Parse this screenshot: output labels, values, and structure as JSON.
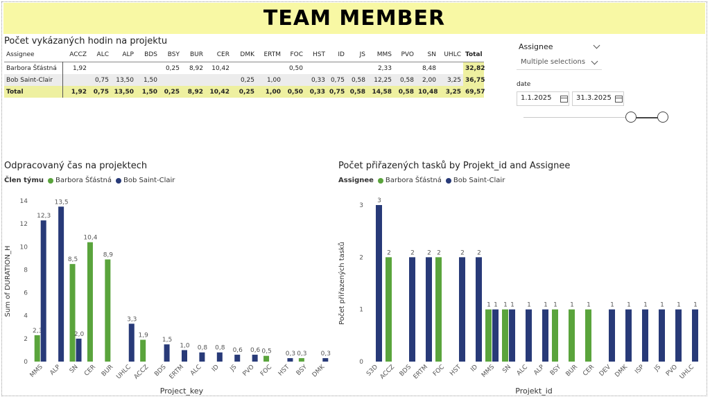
{
  "header": {
    "title": "TEAM MEMBER"
  },
  "matrix": {
    "title": "Počet vykázaných hodin na projektu",
    "columns": [
      "Assignee",
      "ACCZ",
      "ALC",
      "ALP",
      "BDS",
      "BSY",
      "BUR",
      "CER",
      "DMK",
      "ERTM",
      "FOC",
      "HST",
      "ID",
      "JS",
      "MMS",
      "PVO",
      "SN",
      "UHLC",
      "Total"
    ],
    "rows": [
      {
        "cells": [
          "Barbora Šťástná",
          "1,92",
          "",
          "",
          "",
          "0,25",
          "8,92",
          "10,42",
          "",
          "",
          "0,50",
          "",
          "",
          "",
          "2,33",
          "",
          "8,48",
          "",
          "32,82"
        ]
      },
      {
        "cells": [
          "Bob Saint-Clair",
          "",
          "0,75",
          "13,50",
          "1,50",
          "",
          "",
          "",
          "0,25",
          "1,00",
          "",
          "0,33",
          "0,75",
          "0,58",
          "12,25",
          "0,58",
          "2,00",
          "3,25",
          "36,75"
        ]
      }
    ],
    "total": {
      "cells": [
        "Total",
        "1,92",
        "0,75",
        "13,50",
        "1,50",
        "0,25",
        "8,92",
        "10,42",
        "0,25",
        "1,00",
        "0,50",
        "0,33",
        "0,75",
        "0,58",
        "14,58",
        "0,58",
        "10,48",
        "3,25",
        "69,57"
      ]
    }
  },
  "slicers": {
    "assignee_label": "Assignee",
    "assignee_value": "Multiple selections",
    "date_label": "date",
    "date_from": "1.1.2025",
    "date_to": "31.3.2025"
  },
  "colors": {
    "green": "#5aa43c",
    "navy": "#283a78"
  },
  "chart_data": [
    {
      "type": "bar",
      "title": "Odpracovaný čas na projektech",
      "legend_title": "Člen týmu",
      "xlabel": "Project_key",
      "ylabel": "Sum of DURATION_H",
      "ylim": [
        0,
        14
      ],
      "yticks": [
        0,
        2,
        4,
        6,
        8,
        10,
        12,
        14
      ],
      "categories": [
        "MMS",
        "ALP",
        "SN",
        "CER",
        "BUR",
        "UHLC",
        "ACCZ",
        "BDS",
        "ERTM",
        "ALC",
        "ID",
        "JS",
        "PVO",
        "FOC",
        "HST",
        "BSY",
        "DMK"
      ],
      "series": [
        {
          "name": "Barbora Šťástná",
          "values": [
            2.3,
            null,
            8.5,
            10.4,
            8.9,
            null,
            1.9,
            null,
            null,
            null,
            null,
            null,
            null,
            0.5,
            null,
            0.3,
            null
          ],
          "labels": [
            "2,3",
            "",
            "8,5",
            "10,4",
            "8,9",
            "",
            "1,9",
            "",
            "",
            "",
            "",
            "",
            "",
            "0,5",
            "",
            "0,3",
            ""
          ]
        },
        {
          "name": "Bob Saint-Clair",
          "values": [
            12.3,
            13.5,
            2.0,
            null,
            null,
            3.3,
            null,
            1.5,
            1.0,
            0.8,
            0.8,
            0.6,
            0.6,
            null,
            0.3,
            null,
            0.3
          ],
          "labels": [
            "12,3",
            "13,5",
            "2,0",
            "",
            "",
            "3,3",
            "",
            "1,5",
            "1,0",
            "0,8",
            "0,8",
            "0,6",
            "0,6",
            "",
            "0,3",
            "",
            "0,3"
          ]
        }
      ]
    },
    {
      "type": "bar",
      "title": "Počet přiřazených tasků by Projekt_id and Assignee",
      "legend_title": "Assignee",
      "xlabel": "Projekt_id",
      "ylabel": "Počet přiřazených tasků",
      "ylim": [
        0,
        3
      ],
      "yticks": [
        0,
        1,
        2,
        3
      ],
      "categories": [
        "S3D",
        "ACCZ",
        "BDS",
        "ERTM",
        "FOC",
        "HST",
        "ID",
        "MMS",
        "SN",
        "ALC",
        "ALP",
        "BSY",
        "BUR",
        "CER",
        "DEV",
        "DMK",
        "ISP",
        "JS",
        "PVO",
        "UHLC"
      ],
      "series": [
        {
          "name": "Barbora Šťástná",
          "values": [
            null,
            2,
            null,
            null,
            2,
            null,
            null,
            1,
            1,
            null,
            null,
            1,
            1,
            1,
            null,
            null,
            null,
            null,
            null,
            null
          ]
        },
        {
          "name": "Bob Saint-Clair",
          "values": [
            3,
            null,
            2,
            2,
            null,
            2,
            2,
            1,
            1,
            1,
            1,
            null,
            null,
            null,
            1,
            1,
            1,
            1,
            1,
            1
          ]
        }
      ]
    }
  ]
}
